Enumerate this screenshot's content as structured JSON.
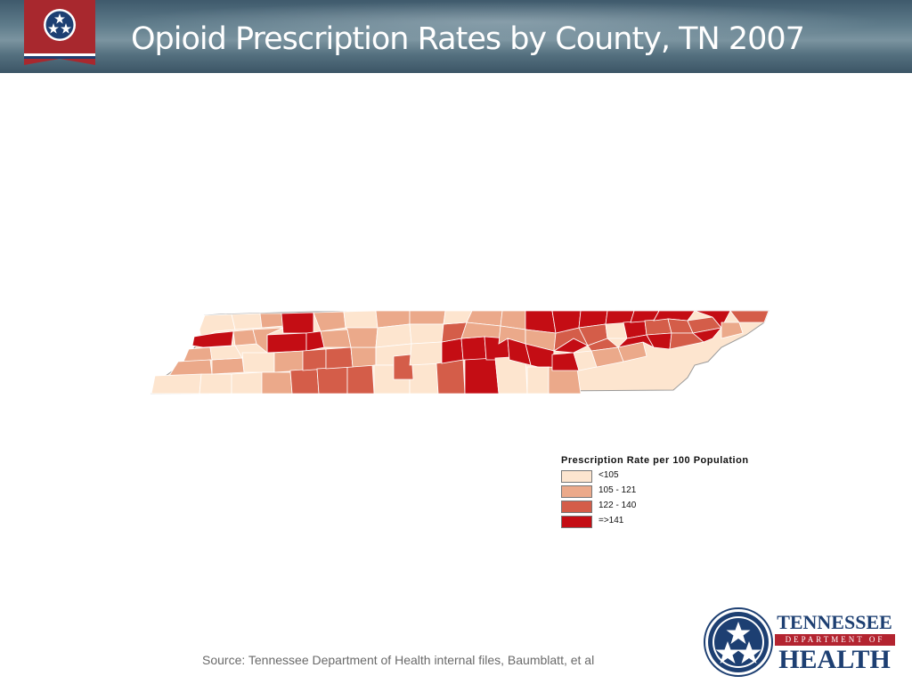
{
  "header": {
    "title": "Opioid Prescription Rates by County, TN 2007"
  },
  "legend": {
    "title": "Prescription Rate per 100 Population",
    "items": [
      {
        "label": "<105",
        "color": "#fde5cf"
      },
      {
        "label": "105 - 121",
        "color": "#eba98a"
      },
      {
        "label": "122 - 140",
        "color": "#d45d49"
      },
      {
        "label": "=>141",
        "color": "#c40d14"
      }
    ]
  },
  "map": {
    "region": "Tennessee counties",
    "outline_color": "#7f7f7f"
  },
  "source": "Source: Tennessee Department of Health internal files, Baumblatt, et al",
  "logo": {
    "line1": "TENNESSEE",
    "line2": "DEPARTMENT OF",
    "line3": "HEALTH",
    "seal_color": "#1d3f72",
    "accent_color": "#b32430"
  },
  "banner": {
    "icon": "tennessee-tristar-flag-icon",
    "flag_color": "#a8282e",
    "star_field_color": "#1d3f72"
  }
}
